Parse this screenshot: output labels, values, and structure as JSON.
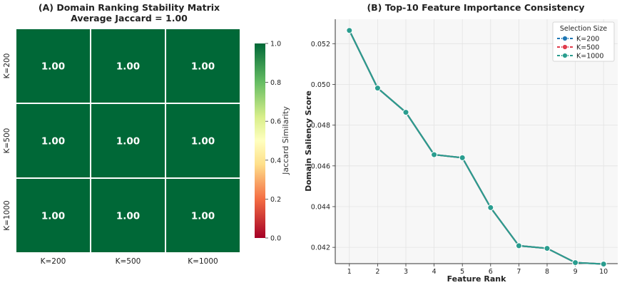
{
  "chart_data": [
    {
      "type": "heatmap",
      "title": "(A) Domain Ranking Stability Matrix",
      "subtitle": "Average Jaccard = 1.00",
      "row_labels": [
        "K=200",
        "K=500",
        "K=1000"
      ],
      "col_labels": [
        "K=200",
        "K=500",
        "K=1000"
      ],
      "values": [
        [
          1.0,
          1.0,
          1.0
        ],
        [
          1.0,
          1.0,
          1.0
        ],
        [
          1.0,
          1.0,
          1.0
        ]
      ],
      "cell_labels": [
        [
          "1.00",
          "1.00",
          "1.00"
        ],
        [
          "1.00",
          "1.00",
          "1.00"
        ],
        [
          "1.00",
          "1.00",
          "1.00"
        ]
      ],
      "colorbar": {
        "label": "Jaccard Similarity",
        "ticks": [
          "0.0",
          "0.2",
          "0.4",
          "0.6",
          "0.8",
          "1.0"
        ],
        "range": [
          0,
          1
        ],
        "colormap": [
          "#a50026",
          "#f46d43",
          "#fee08b",
          "#ffffbf",
          "#d9ef8b",
          "#66bd63",
          "#006837"
        ]
      },
      "cell_color": "#006837"
    },
    {
      "type": "line",
      "title": "(B) Top-10 Feature Importance Consistency",
      "xlabel": "Feature Rank",
      "ylabel": "Domain Saliency Score",
      "x": [
        1,
        2,
        3,
        4,
        5,
        6,
        7,
        8,
        9,
        10
      ],
      "xticks": [
        "1",
        "2",
        "3",
        "4",
        "5",
        "6",
        "7",
        "8",
        "9",
        "10"
      ],
      "xlim": [
        0.5,
        10.5
      ],
      "ylim": [
        0.0412,
        0.0532
      ],
      "yticks": [
        "0.042",
        "0.044",
        "0.046",
        "0.048",
        "0.050",
        "0.052"
      ],
      "grid": true,
      "legend": {
        "title": "Selection Size",
        "placement": "top-right"
      },
      "series": [
        {
          "name": "K=200",
          "color": "#1f77b4",
          "values": [
            0.05265,
            0.04982,
            0.04863,
            0.04655,
            0.0464,
            0.04395,
            0.04208,
            0.04195,
            0.04125,
            0.04118
          ]
        },
        {
          "name": "K=500",
          "color": "#e03c4c",
          "values": [
            0.05265,
            0.04982,
            0.04863,
            0.04655,
            0.0464,
            0.04395,
            0.04208,
            0.04195,
            0.04125,
            0.04118
          ]
        },
        {
          "name": "K=1000",
          "color": "#2a9d8f",
          "values": [
            0.05265,
            0.04982,
            0.04863,
            0.04655,
            0.0464,
            0.04395,
            0.04208,
            0.04195,
            0.04125,
            0.04118
          ]
        }
      ]
    }
  ]
}
